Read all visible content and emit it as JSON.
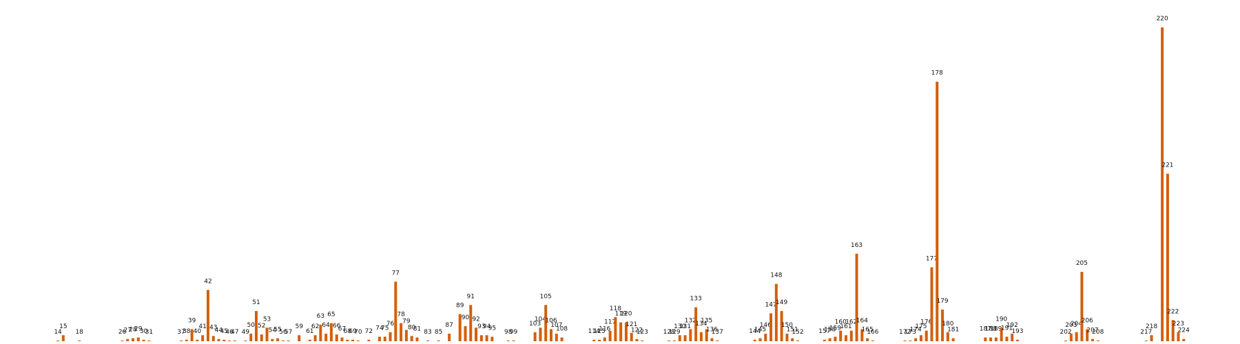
{
  "chart_data": {
    "type": "bar",
    "color": "#d35f0a",
    "xlim": [
      3.2,
      234.5
    ],
    "ylim": [
      0,
      434
    ],
    "x": [
      14,
      15,
      18,
      26,
      27,
      28,
      29,
      30,
      31,
      37,
      38,
      39,
      40,
      41,
      42,
      43,
      44,
      45,
      46,
      47,
      49,
      50,
      51,
      52,
      53,
      54,
      55,
      56,
      57,
      59,
      61,
      62,
      63,
      64,
      65,
      66,
      67,
      68,
      69,
      70,
      72,
      74,
      75,
      76,
      77,
      78,
      79,
      80,
      81,
      83,
      85,
      87,
      89,
      90,
      91,
      92,
      93,
      94,
      95,
      98,
      99,
      103,
      104,
      105,
      106,
      107,
      108,
      114,
      115,
      116,
      117,
      118,
      119,
      120,
      121,
      122,
      123,
      128,
      129,
      130,
      131,
      132,
      133,
      134,
      135,
      136,
      137,
      144,
      145,
      146,
      147,
      148,
      149,
      150,
      151,
      152,
      157,
      158,
      159,
      160,
      161,
      162,
      163,
      164,
      165,
      166,
      172,
      173,
      174,
      175,
      176,
      177,
      178,
      179,
      180,
      181,
      187,
      188,
      189,
      190,
      191,
      192,
      193,
      202,
      203,
      204,
      205,
      206,
      207,
      208,
      217,
      218,
      220,
      221,
      222,
      223,
      224
    ],
    "values": [
      1,
      8,
      1,
      1,
      3,
      4,
      5,
      2,
      1,
      1,
      2,
      16,
      2,
      8,
      68,
      7,
      3,
      2,
      1,
      1,
      1,
      10,
      40,
      9,
      18,
      3,
      4,
      1,
      1,
      8,
      2,
      8,
      22,
      10,
      24,
      9,
      5,
      2,
      2,
      1,
      2,
      6,
      6,
      12,
      79,
      24,
      15,
      7,
      5,
      1,
      1,
      10,
      36,
      20,
      48,
      18,
      8,
      8,
      6,
      1,
      1,
      12,
      18,
      48,
      16,
      10,
      5,
      2,
      2,
      5,
      14,
      32,
      25,
      25,
      11,
      3,
      1,
      1,
      1,
      8,
      8,
      16,
      45,
      12,
      16,
      4,
      1,
      2,
      4,
      10,
      37,
      76,
      40,
      10,
      4,
      1,
      2,
      4,
      6,
      14,
      8,
      14,
      116,
      16,
      4,
      1,
      1,
      1,
      4,
      8,
      14,
      98,
      344,
      42,
      12,
      4,
      5,
      5,
      5,
      18,
      6,
      10,
      2,
      1,
      10,
      12,
      92,
      16,
      3,
      1,
      1,
      8,
      416,
      222,
      28,
      12,
      3
    ]
  }
}
